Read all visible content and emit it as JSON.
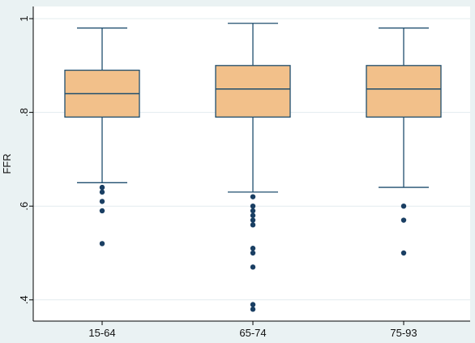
{
  "chart_data": {
    "type": "box",
    "title": "",
    "xlabel": "",
    "ylabel": "FFR",
    "ylim": [
      0.37,
      1.0
    ],
    "yticks": [
      1.0,
      0.8,
      0.6,
      0.4
    ],
    "ytick_labels": [
      "1",
      ".8",
      ".6",
      ".4"
    ],
    "grid": "horizontal",
    "legend": "none",
    "colors": {
      "page_background": "#eaf2f3",
      "plot_background": "#ffffff",
      "box_fill": "#f2c08a",
      "box_stroke": "#1f4e6e",
      "outlier": "#1a3f63",
      "grid": "#e3ecef",
      "axis": "#000000"
    },
    "categories": [
      "15-64",
      "65-74",
      "75-93"
    ],
    "boxes": [
      {
        "category": "15-64",
        "whisker_low": 0.65,
        "q1": 0.79,
        "median": 0.84,
        "q3": 0.89,
        "whisker_high": 0.98,
        "outliers": [
          0.64,
          0.63,
          0.61,
          0.59,
          0.52
        ]
      },
      {
        "category": "65-74",
        "whisker_low": 0.63,
        "q1": 0.79,
        "median": 0.85,
        "q3": 0.9,
        "whisker_high": 0.99,
        "outliers": [
          0.62,
          0.6,
          0.59,
          0.58,
          0.57,
          0.56,
          0.51,
          0.5,
          0.47,
          0.39,
          0.38
        ]
      },
      {
        "category": "75-93",
        "whisker_low": 0.64,
        "q1": 0.79,
        "median": 0.85,
        "q3": 0.9,
        "whisker_high": 0.98,
        "outliers": [
          0.6,
          0.57,
          0.5
        ]
      }
    ]
  }
}
